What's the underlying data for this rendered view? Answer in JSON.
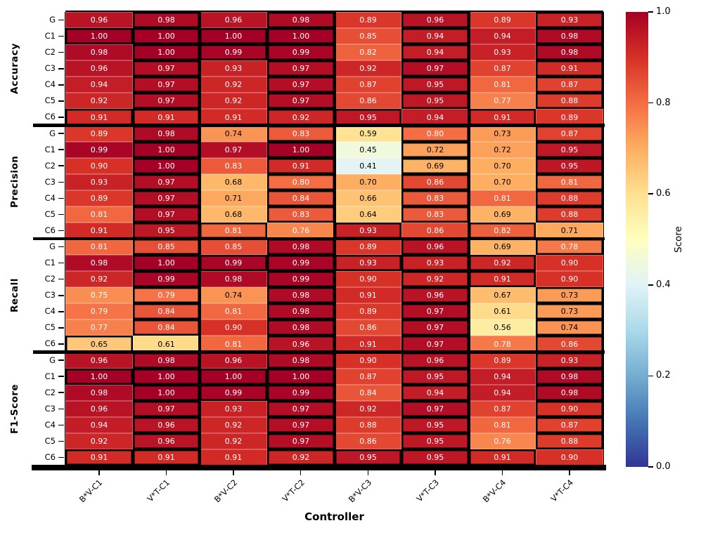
{
  "chart_data": {
    "type": "heatmap",
    "xlabel": "Controller",
    "colorbar_label": "Score",
    "colorbar_ticks": [
      "1.0",
      "0.8",
      "0.6",
      "0.4",
      "0.2",
      "0.0"
    ],
    "vmin": 0.0,
    "vmax": 1.0,
    "columns": [
      "B*V-C1",
      "V*T-C1",
      "B*V-C2",
      "V*T-C2",
      "B*V-C3",
      "V*T-C3",
      "B*V-C4",
      "V*T-C4"
    ],
    "row_labels": [
      "G",
      "C1",
      "C2",
      "C3",
      "C4",
      "C5",
      "C6"
    ],
    "groups": [
      {
        "name": "Accuracy",
        "values": [
          [
            0.96,
            0.98,
            0.96,
            0.98,
            0.89,
            0.96,
            0.89,
            0.93
          ],
          [
            1.0,
            1.0,
            1.0,
            1.0,
            0.85,
            0.94,
            0.94,
            0.98
          ],
          [
            0.98,
            1.0,
            0.99,
            0.99,
            0.82,
            0.94,
            0.93,
            0.98
          ],
          [
            0.96,
            0.97,
            0.93,
            0.97,
            0.92,
            0.97,
            0.87,
            0.91
          ],
          [
            0.94,
            0.97,
            0.92,
            0.97,
            0.87,
            0.95,
            0.81,
            0.87
          ],
          [
            0.92,
            0.97,
            0.92,
            0.97,
            0.86,
            0.95,
            0.77,
            0.88
          ],
          [
            0.91,
            0.91,
            0.91,
            0.92,
            0.95,
            0.94,
            0.91,
            0.89
          ]
        ]
      },
      {
        "name": "Precision",
        "values": [
          [
            0.89,
            0.98,
            0.74,
            0.83,
            0.59,
            0.8,
            0.73,
            0.87
          ],
          [
            0.99,
            1.0,
            0.97,
            1.0,
            0.45,
            0.72,
            0.72,
            0.95
          ],
          [
            0.9,
            1.0,
            0.83,
            0.91,
            0.41,
            0.69,
            0.7,
            0.95
          ],
          [
            0.93,
            0.97,
            0.68,
            0.8,
            0.7,
            0.86,
            0.7,
            0.81
          ],
          [
            0.89,
            0.97,
            0.71,
            0.84,
            0.66,
            0.83,
            0.81,
            0.88
          ],
          [
            0.81,
            0.97,
            0.68,
            0.83,
            0.64,
            0.83,
            0.69,
            0.88
          ],
          [
            0.91,
            0.95,
            0.81,
            0.76,
            0.93,
            0.86,
            0.82,
            0.71
          ]
        ]
      },
      {
        "name": "Recall",
        "values": [
          [
            0.81,
            0.85,
            0.85,
            0.98,
            0.89,
            0.96,
            0.69,
            0.78
          ],
          [
            0.98,
            1.0,
            0.99,
            0.99,
            0.93,
            0.93,
            0.92,
            0.9
          ],
          [
            0.92,
            0.99,
            0.98,
            0.99,
            0.9,
            0.92,
            0.91,
            0.9
          ],
          [
            0.75,
            0.79,
            0.74,
            0.98,
            0.91,
            0.96,
            0.67,
            0.73
          ],
          [
            0.79,
            0.84,
            0.81,
            0.98,
            0.89,
            0.97,
            0.61,
            0.73
          ],
          [
            0.77,
            0.84,
            0.9,
            0.98,
            0.86,
            0.97,
            0.56,
            0.74
          ],
          [
            0.65,
            0.61,
            0.81,
            0.96,
            0.91,
            0.97,
            0.78,
            0.86
          ]
        ]
      },
      {
        "name": "F1-Score",
        "values": [
          [
            0.96,
            0.98,
            0.96,
            0.98,
            0.9,
            0.96,
            0.89,
            0.93
          ],
          [
            1.0,
            1.0,
            1.0,
            1.0,
            0.87,
            0.95,
            0.94,
            0.98
          ],
          [
            0.98,
            1.0,
            0.99,
            0.99,
            0.84,
            0.94,
            0.94,
            0.98
          ],
          [
            0.96,
            0.97,
            0.93,
            0.97,
            0.92,
            0.97,
            0.87,
            0.9
          ],
          [
            0.94,
            0.96,
            0.92,
            0.97,
            0.88,
            0.95,
            0.81,
            0.87
          ],
          [
            0.92,
            0.96,
            0.92,
            0.97,
            0.86,
            0.95,
            0.76,
            0.88
          ],
          [
            0.91,
            0.91,
            0.91,
            0.92,
            0.95,
            0.95,
            0.91,
            0.9
          ]
        ]
      }
    ],
    "colormap": "RdYlBu_r",
    "colormap_stops": [
      "#313695",
      "#4575b4",
      "#74add1",
      "#abd9e9",
      "#e0f3f8",
      "#ffffbf",
      "#fee090",
      "#fdae61",
      "#f46d43",
      "#d73027",
      "#a50026"
    ],
    "highlight_rule": "max-of-each-BxV-vs-VxT-controller-pair-per-row-ties-both",
    "annotation_colors": {
      "light_text": "#ffffff",
      "dark_text": "#000000"
    },
    "grid": "thin-white-cell-borders",
    "legend_position": "right-colorbar"
  }
}
